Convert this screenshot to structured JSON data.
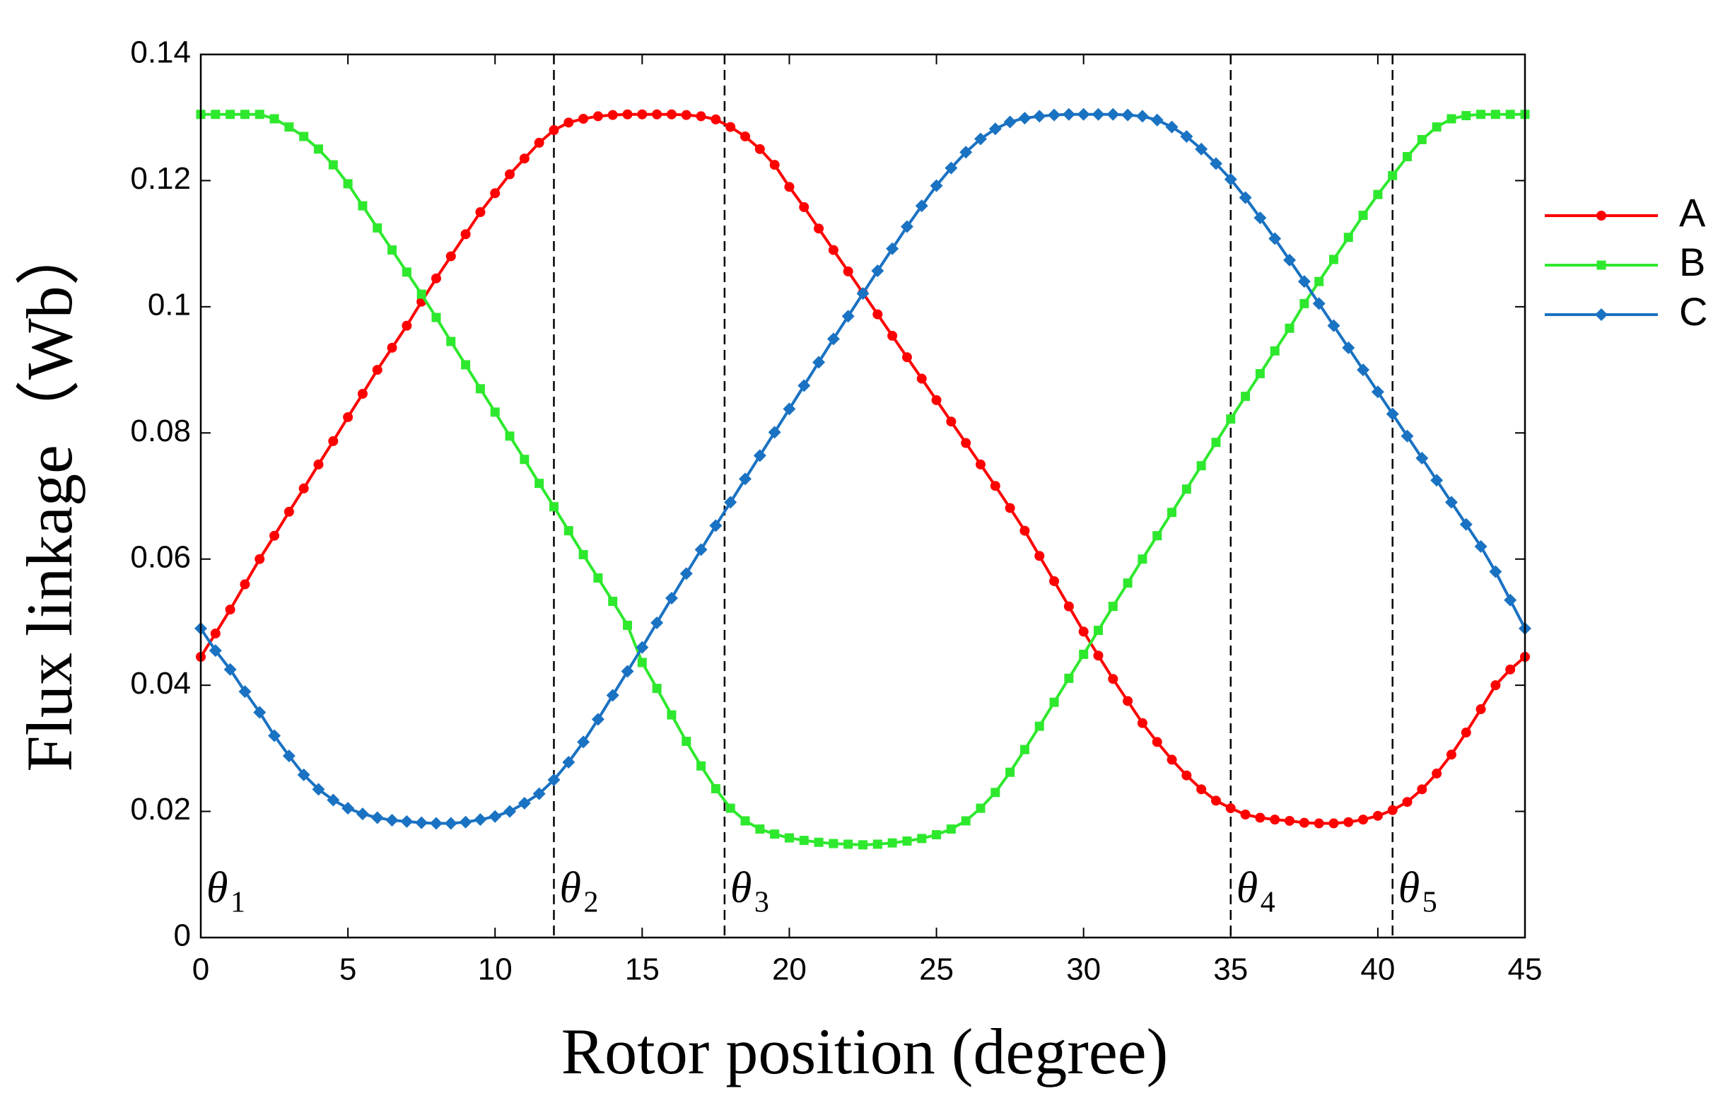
{
  "chart_data": {
    "type": "line",
    "y_label": "Flux linkage（Wb）",
    "x_label": "Rotor position (degree)",
    "x": [
      0,
      0.5,
      1,
      1.5,
      2,
      2.5,
      3,
      3.5,
      4,
      4.5,
      5,
      5.5,
      6,
      6.5,
      7,
      7.5,
      8,
      8.5,
      9,
      9.5,
      10,
      10.5,
      11,
      11.5,
      12,
      12.5,
      13,
      13.5,
      14,
      14.5,
      15,
      15.5,
      16,
      16.5,
      17,
      17.5,
      18,
      18.5,
      19,
      19.5,
      20,
      20.5,
      21,
      21.5,
      22,
      22.5,
      23,
      23.5,
      24,
      24.5,
      25,
      25.5,
      26,
      26.5,
      27,
      27.5,
      28,
      28.5,
      29,
      29.5,
      30,
      30.5,
      31,
      31.5,
      32,
      32.5,
      33,
      33.5,
      34,
      34.5,
      35,
      35.5,
      36,
      36.5,
      37,
      37.5,
      38,
      38.5,
      39,
      39.5,
      40,
      40.5,
      41,
      41.5,
      42,
      42.5,
      43,
      43.5,
      44,
      44.5,
      45
    ],
    "series": [
      {
        "name": "A",
        "color": "#ff0000",
        "marker": "circle",
        "values": [
          0.0445,
          0.0482,
          0.052,
          0.056,
          0.06,
          0.0637,
          0.0675,
          0.0712,
          0.075,
          0.0787,
          0.0825,
          0.0862,
          0.09,
          0.0935,
          0.097,
          0.1008,
          0.1045,
          0.108,
          0.1115,
          0.115,
          0.118,
          0.121,
          0.1235,
          0.126,
          0.128,
          0.1292,
          0.1298,
          0.1302,
          0.1304,
          0.1305,
          0.1305,
          0.1305,
          0.1305,
          0.1304,
          0.1302,
          0.1297,
          0.1285,
          0.127,
          0.125,
          0.1225,
          0.119,
          0.1158,
          0.1124,
          0.109,
          0.1056,
          0.1022,
          0.0988,
          0.0954,
          0.092,
          0.0886,
          0.0852,
          0.0818,
          0.0784,
          0.075,
          0.0716,
          0.0681,
          0.0645,
          0.0605,
          0.0565,
          0.0525,
          0.0485,
          0.0447,
          0.041,
          0.0375,
          0.034,
          0.031,
          0.0282,
          0.0257,
          0.0235,
          0.0217,
          0.0205,
          0.0195,
          0.019,
          0.0187,
          0.0185,
          0.0182,
          0.0181,
          0.0181,
          0.0183,
          0.0187,
          0.0193,
          0.0202,
          0.0215,
          0.0235,
          0.026,
          0.029,
          0.0325,
          0.0362,
          0.04,
          0.0425,
          0.0445
        ]
      },
      {
        "name": "B",
        "color": "#2ee82e",
        "marker": "square",
        "values": [
          0.1305,
          0.1305,
          0.1305,
          0.1305,
          0.1305,
          0.1298,
          0.1285,
          0.127,
          0.125,
          0.1225,
          0.1195,
          0.116,
          0.1125,
          0.109,
          0.1055,
          0.102,
          0.0983,
          0.0945,
          0.0908,
          0.087,
          0.0833,
          0.0795,
          0.0758,
          0.072,
          0.0683,
          0.0645,
          0.0607,
          0.057,
          0.0533,
          0.0495,
          0.0436,
          0.0395,
          0.0353,
          0.0311,
          0.0272,
          0.0236,
          0.0205,
          0.0185,
          0.0172,
          0.0164,
          0.0158,
          0.0154,
          0.0151,
          0.0149,
          0.0148,
          0.0147,
          0.0148,
          0.015,
          0.0153,
          0.0157,
          0.0163,
          0.0172,
          0.0185,
          0.0205,
          0.023,
          0.0262,
          0.0298,
          0.0335,
          0.0373,
          0.0411,
          0.0449,
          0.0487,
          0.0525,
          0.0562,
          0.06,
          0.0637,
          0.0674,
          0.0711,
          0.0748,
          0.0785,
          0.0822,
          0.0858,
          0.0894,
          0.093,
          0.0966,
          0.1005,
          0.104,
          0.1075,
          0.111,
          0.1145,
          0.1178,
          0.1208,
          0.1238,
          0.1265,
          0.1285,
          0.1298,
          0.1303,
          0.1305,
          0.1305,
          0.1305,
          0.1305
        ]
      },
      {
        "name": "C",
        "color": "#1a72c2",
        "marker": "diamond",
        "values": [
          0.049,
          0.0455,
          0.0425,
          0.039,
          0.0357,
          0.032,
          0.0288,
          0.0258,
          0.0235,
          0.0218,
          0.0205,
          0.0196,
          0.019,
          0.0186,
          0.0184,
          0.0182,
          0.0181,
          0.0181,
          0.0183,
          0.0187,
          0.0192,
          0.02,
          0.0213,
          0.0228,
          0.025,
          0.0278,
          0.031,
          0.0346,
          0.0384,
          0.0422,
          0.046,
          0.0499,
          0.0538,
          0.0577,
          0.0615,
          0.0653,
          0.069,
          0.0727,
          0.0764,
          0.0801,
          0.0838,
          0.0875,
          0.0912,
          0.0949,
          0.0985,
          0.1021,
          0.1057,
          0.1092,
          0.1127,
          0.116,
          0.1192,
          0.122,
          0.1245,
          0.1266,
          0.1282,
          0.1293,
          0.1299,
          0.1302,
          0.1304,
          0.1305,
          0.1305,
          0.1305,
          0.1305,
          0.1304,
          0.1302,
          0.1296,
          0.1285,
          0.127,
          0.125,
          0.1227,
          0.1202,
          0.1173,
          0.1141,
          0.1108,
          0.1074,
          0.104,
          0.1005,
          0.097,
          0.0935,
          0.09,
          0.0865,
          0.083,
          0.0795,
          0.076,
          0.0725,
          0.069,
          0.0655,
          0.062,
          0.058,
          0.0535,
          0.049
        ]
      }
    ],
    "vlines": [
      12,
      17.8,
      35,
      40.5
    ],
    "annotations": [
      {
        "text": "θ",
        "sub": "1",
        "x": 0
      },
      {
        "text": "θ",
        "sub": "2",
        "x": 12
      },
      {
        "text": "θ",
        "sub": "3",
        "x": 17.8
      },
      {
        "text": "θ",
        "sub": "4",
        "x": 35
      },
      {
        "text": "θ",
        "sub": "5",
        "x": 40.5
      }
    ],
    "xlim": [
      0,
      45
    ],
    "xticks": [
      0,
      5,
      10,
      15,
      20,
      25,
      30,
      35,
      40,
      45
    ],
    "ylim": [
      0,
      0.14
    ],
    "yticks": [
      0,
      0.02,
      0.04,
      0.06,
      0.08,
      0.1,
      0.12,
      0.14
    ],
    "grid": false,
    "legend": "right"
  }
}
